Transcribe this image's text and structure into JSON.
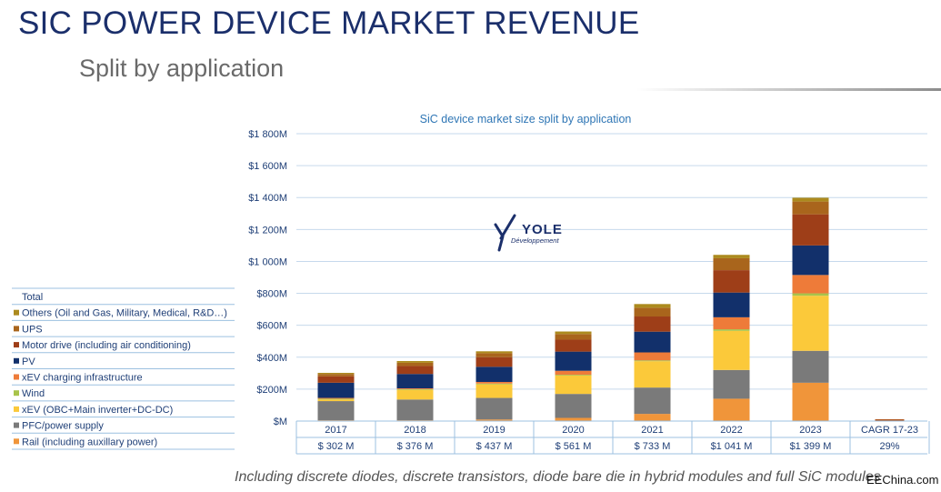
{
  "slide": {
    "title": "SIC POWER DEVICE MARKET REVENUE",
    "subtitle": "Split by application",
    "footnote": "Including discrete diodes, discrete transistors, diode bare die in hybrid modules and full SiC modules",
    "watermark": "EEChina.com"
  },
  "logo": {
    "name": "YOLE",
    "tagline": "Développement"
  },
  "chart_data": {
    "type": "bar",
    "stacked": true,
    "title": "SiC device market size split by application",
    "categories": [
      "2017",
      "2018",
      "2019",
      "2020",
      "2021",
      "2022",
      "2023"
    ],
    "extra_category": "CAGR 17-23",
    "y_ticks": [
      "$M",
      "$200M",
      "$400M",
      "$600M",
      "$800M",
      "$1 000M",
      "$1 200M",
      "$1 400M",
      "$1 600M",
      "$1 800M"
    ],
    "ylim": [
      0,
      1800
    ],
    "totals_label": "Total",
    "totals": [
      "$ 302 M",
      "$ 376 M",
      "$ 437 M",
      "$ 561 M",
      "$ 733 M",
      "$1 041 M",
      "$1 399 M",
      "29%"
    ],
    "series": [
      {
        "name": "Rail (including auxillary power)",
        "color": "#f0953a",
        "values": [
          5,
          5,
          10,
          20,
          45,
          140,
          240
        ]
      },
      {
        "name": "PFC/power supply",
        "color": "#7a7a7a",
        "values": [
          120,
          130,
          135,
          150,
          165,
          180,
          200
        ]
      },
      {
        "name": "xEV (OBC+Main inverter+DC-DC)",
        "color": "#fbc93a",
        "values": [
          10,
          60,
          85,
          115,
          165,
          245,
          345
        ]
      },
      {
        "name": "Wind",
        "color": "#a8c34a",
        "values": [
          5,
          5,
          5,
          5,
          5,
          10,
          15
        ]
      },
      {
        "name": "xEV charging infrastructure",
        "color": "#ee7b39",
        "values": [
          5,
          5,
          10,
          25,
          50,
          75,
          115
        ]
      },
      {
        "name": "PV",
        "color": "#12306b",
        "values": [
          95,
          90,
          95,
          120,
          130,
          155,
          185
        ]
      },
      {
        "name": "Motor drive (including air conditioning)",
        "color": "#9e3e18",
        "values": [
          40,
          50,
          60,
          75,
          95,
          140,
          195
        ]
      },
      {
        "name": "UPS",
        "color": "#a9651c",
        "values": [
          15,
          20,
          25,
          35,
          55,
          75,
          80
        ]
      },
      {
        "name": "Others (Oil and Gas, Military, Medical, R&D…)",
        "color": "#ac8a1e",
        "values": [
          7,
          11,
          12,
          16,
          23,
          21,
          24
        ]
      }
    ]
  }
}
